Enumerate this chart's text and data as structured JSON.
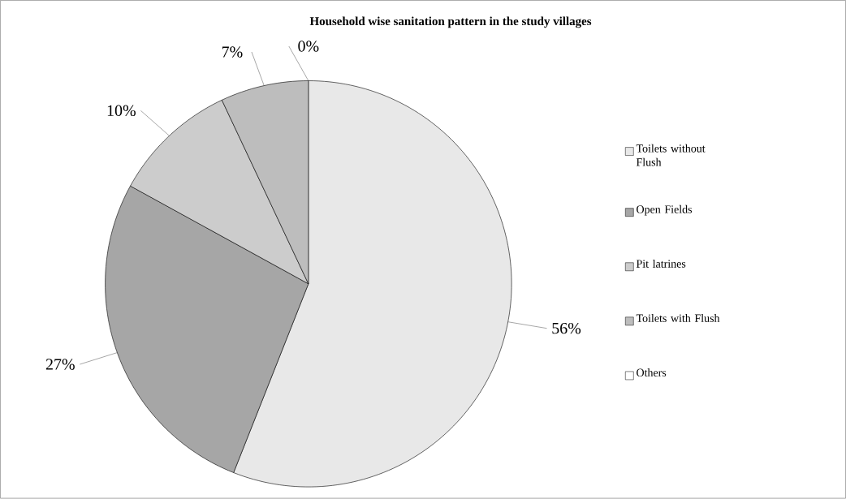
{
  "chart_data": {
    "type": "pie",
    "title": "Household wise sanitation pattern in the study villages",
    "categories": [
      "Toilets without Flush",
      "Open Fields",
      "Pit latrines",
      "Toilets with Flush",
      "Others"
    ],
    "values": [
      56,
      27,
      10,
      7,
      0
    ],
    "value_labels": [
      "56%",
      "27%",
      "10%",
      "7%",
      "0%"
    ],
    "colors": [
      "#e8e8e8",
      "#a6a6a6",
      "#cccccc",
      "#bdbdbd",
      "#ffffff"
    ],
    "legend": "right"
  }
}
